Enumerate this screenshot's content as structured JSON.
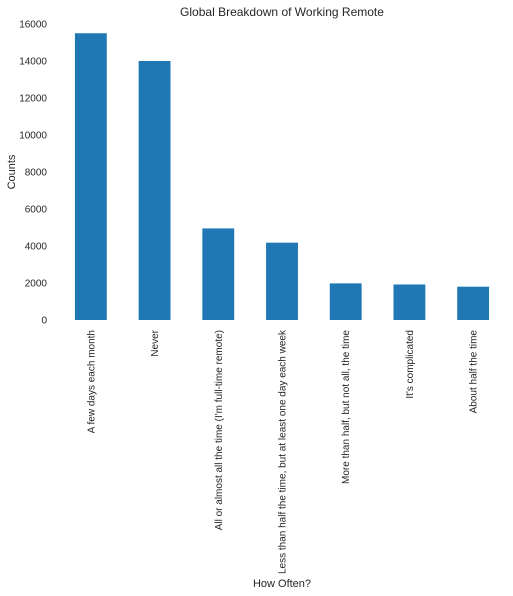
{
  "chart_data": {
    "type": "bar",
    "title": "Global Breakdown of Working Remote",
    "xlabel": "How Often?",
    "ylabel": "Counts",
    "ylim": [
      0,
      16000
    ],
    "yticks": [
      0,
      2000,
      4000,
      6000,
      8000,
      10000,
      12000,
      14000,
      16000
    ],
    "grid": false,
    "bar_color": "#1f77b4",
    "categories": [
      "A few days each month",
      "Never",
      "All or almost all the time (I'm full-time remote)",
      "Less than half the time, but at least one day each week",
      "More than half, but not all, the time",
      "It's complicated",
      "About half the time"
    ],
    "values": [
      15500,
      14000,
      4950,
      4180,
      1980,
      1920,
      1800
    ]
  }
}
